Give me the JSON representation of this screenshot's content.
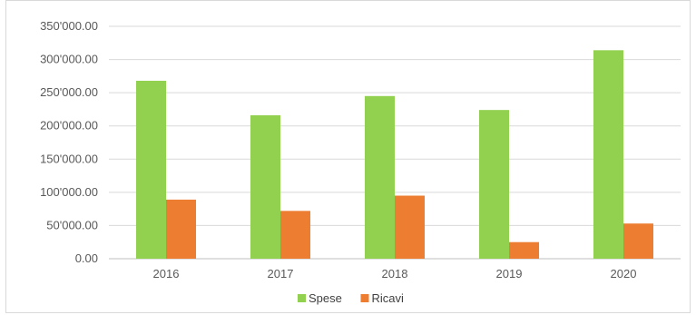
{
  "chart_data": {
    "type": "bar",
    "categories": [
      "2016",
      "2017",
      "2018",
      "2019",
      "2020"
    ],
    "series": [
      {
        "name": "Spese",
        "color": "#92d050",
        "values": [
          268000,
          216000,
          245000,
          224000,
          314000
        ]
      },
      {
        "name": "Ricavi",
        "color": "#ed7d31",
        "values": [
          89000,
          72000,
          95000,
          25000,
          53000
        ]
      }
    ],
    "y_ticks": [
      "0.00",
      "50'000.00",
      "100'000.00",
      "150'000.00",
      "200'000.00",
      "250'000.00",
      "300'000.00",
      "350'000.00"
    ],
    "ylim": [
      0,
      350000
    ],
    "grid": true,
    "legend_position": "bottom"
  }
}
